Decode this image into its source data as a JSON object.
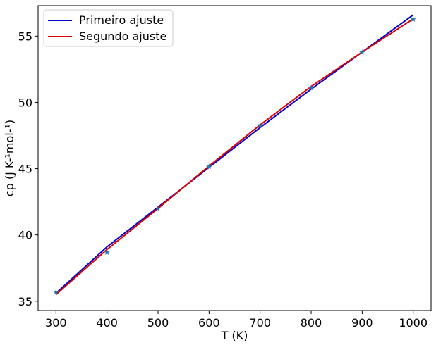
{
  "chart_data": {
    "type": "line",
    "xlabel": "T (K)",
    "ylabel": "cp (J K-¹mol-¹)",
    "xlim": [
      265,
      1035
    ],
    "ylim": [
      34.3,
      57.3
    ],
    "xticks": [
      300,
      400,
      500,
      600,
      700,
      800,
      900,
      1000
    ],
    "yticks": [
      35,
      40,
      45,
      50,
      55
    ],
    "grid": false,
    "legend_position": "top-left",
    "points": {
      "marker": "star",
      "color": "#1f77b4",
      "x": [
        300,
        400,
        500,
        600,
        700,
        800,
        900,
        1000
      ],
      "y": [
        35.7,
        38.7,
        42.0,
        45.2,
        48.3,
        51.1,
        53.8,
        56.3
      ]
    },
    "series": [
      {
        "name": "Primeiro ajuste",
        "color": "#0000cc",
        "x": [
          300,
          400,
          500,
          600,
          700,
          800,
          900,
          1000
        ],
        "y": [
          35.6,
          39.1,
          42.1,
          45.1,
          48.1,
          51.0,
          53.8,
          56.6
        ]
      },
      {
        "name": "Segundo ajuste",
        "color": "#dd0000",
        "x": [
          300,
          400,
          500,
          600,
          700,
          800,
          900,
          1000
        ],
        "y": [
          35.5,
          38.9,
          42.0,
          45.2,
          48.3,
          51.2,
          53.8,
          56.3
        ]
      }
    ]
  }
}
